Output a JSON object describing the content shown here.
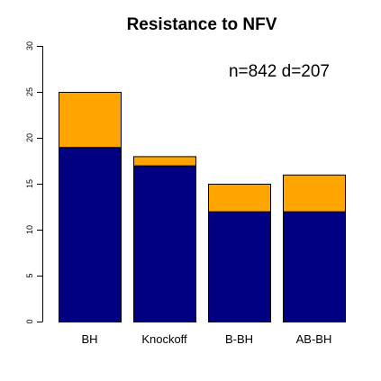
{
  "chart_data": {
    "type": "bar",
    "stacked": true,
    "title": "Resistance to NFV",
    "annotation": "n=842 d=207",
    "categories": [
      "BH",
      "Knockoff",
      "B-BH",
      "AB-BH"
    ],
    "series": [
      {
        "values": [
          19,
          17,
          12,
          12
        ],
        "color": "#000080"
      },
      {
        "values": [
          6,
          1,
          3,
          4
        ],
        "color": "#FFA500"
      }
    ],
    "ylim": [
      0,
      30
    ],
    "yticks": [
      0,
      5,
      10,
      15,
      20,
      25,
      30
    ],
    "grid": false,
    "legend": "none"
  }
}
